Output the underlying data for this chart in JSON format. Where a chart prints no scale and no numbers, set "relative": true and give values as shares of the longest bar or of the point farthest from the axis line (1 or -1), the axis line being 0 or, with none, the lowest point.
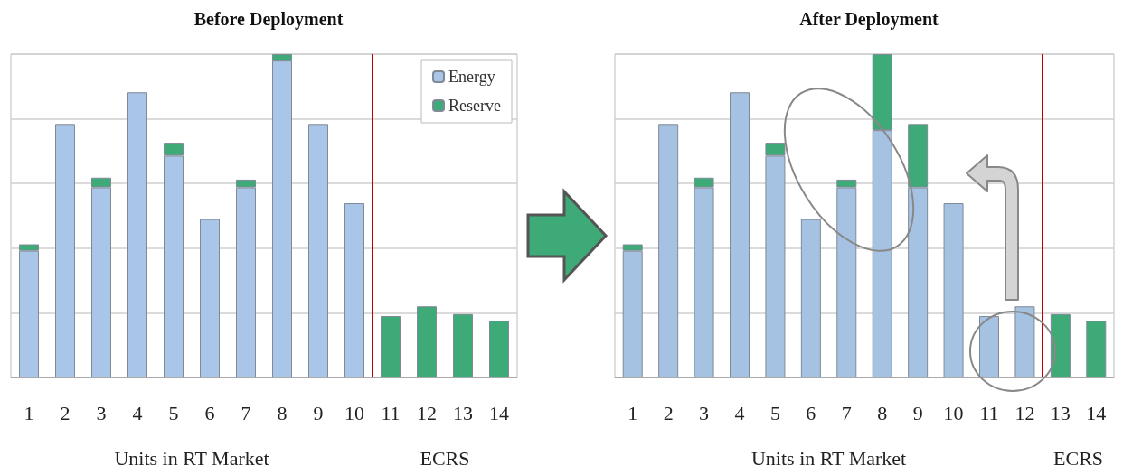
{
  "chart_data": [
    {
      "type": "bar",
      "title": "Before Deployment",
      "stacked": true,
      "relative": true,
      "x": [
        1,
        2,
        3,
        4,
        5,
        6,
        7,
        8,
        9,
        10,
        11,
        12,
        13,
        14
      ],
      "xlim": [
        0.5,
        14.5
      ],
      "xticks": [
        1,
        2,
        3,
        4,
        5,
        6,
        7,
        8,
        9,
        10,
        11,
        12,
        13,
        14
      ],
      "grid": "y",
      "legend": "top right",
      "series": [
        {
          "name": "Energy",
          "color": "#a9c6e8",
          "values": [
            0.392,
            0.784,
            0.588,
            0.882,
            0.686,
            0.49,
            0.588,
            0.98,
            0.784,
            0.539,
            null,
            null,
            null,
            null
          ]
        },
        {
          "name": "Reserve",
          "color": "#3daa78",
          "values": [
            0.02,
            null,
            0.03,
            null,
            0.04,
            null,
            0.024,
            0.02,
            null,
            null,
            0.19,
            0.22,
            0.196,
            0.175
          ]
        }
      ],
      "ref_lines": [
        {
          "axis": "x",
          "value": 10.5,
          "color": "#c00000"
        }
      ],
      "annotations": [
        "Units in RT Market",
        "ECRS"
      ]
    },
    {
      "type": "bar",
      "title": "After Deployment",
      "stacked": true,
      "relative": true,
      "x": [
        1,
        2,
        3,
        4,
        5,
        6,
        7,
        8,
        9,
        10,
        11,
        12,
        13,
        14
      ],
      "xlim": [
        0.5,
        14.5
      ],
      "xticks": [
        1,
        2,
        3,
        4,
        5,
        6,
        7,
        8,
        9,
        10,
        11,
        12,
        13,
        14
      ],
      "grid": "y",
      "series": [
        {
          "color": "#a6c2e2",
          "values": [
            0.392,
            0.784,
            0.588,
            0.882,
            0.686,
            0.49,
            0.588,
            0.765,
            0.588,
            0.539,
            0.19,
            0.22,
            null,
            null
          ]
        },
        {
          "color": "#3daa78",
          "values": [
            0.02,
            null,
            0.03,
            null,
            0.04,
            null,
            0.024,
            0.235,
            0.196,
            null,
            null,
            null,
            0.196,
            0.175
          ]
        }
      ],
      "ref_lines": [
        {
          "axis": "x",
          "value": 12.5,
          "color": "#c00000"
        }
      ],
      "annotations": [
        "Units in RT Market",
        "ECRS"
      ]
    }
  ]
}
